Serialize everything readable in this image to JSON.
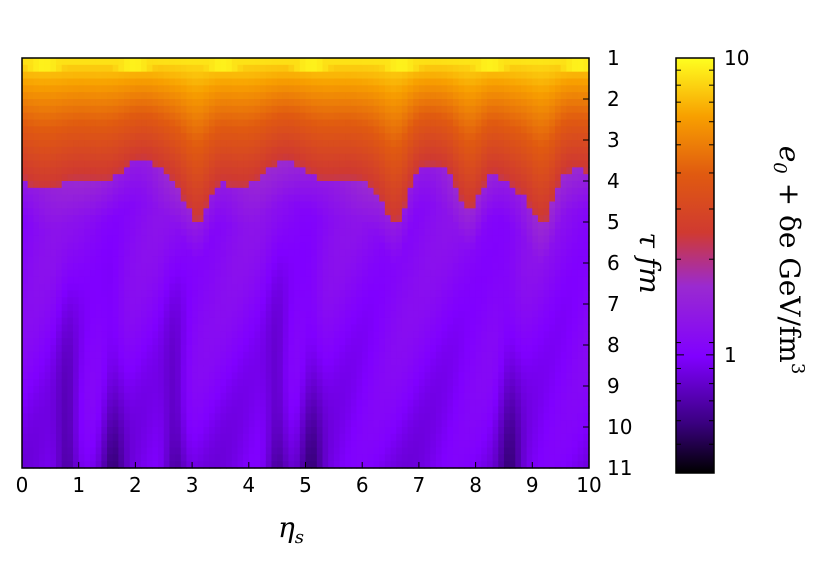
{
  "chart_data": {
    "type": "heatmap",
    "title": "",
    "x": {
      "label": "η",
      "label_sub": "s",
      "range": [
        0,
        10
      ],
      "ticks": [
        "0",
        "1",
        "2",
        "3",
        "4",
        "5",
        "6",
        "7",
        "8",
        "9",
        "10"
      ]
    },
    "y": {
      "label": "τ fm",
      "range": [
        1,
        11
      ],
      "inverted": true,
      "position": "right",
      "ticks": [
        "1",
        "2",
        "3",
        "4",
        "5",
        "6",
        "7",
        "8",
        "9",
        "10",
        "11"
      ]
    },
    "colorbar": {
      "label_prefix": "e",
      "label_sub": "0",
      "label_mid": " + δe GeV/fm",
      "label_sup": "3",
      "scale": "log",
      "range": [
        0.4,
        10
      ],
      "tick_labels": [
        "1",
        "10"
      ],
      "tick_values": [
        1,
        10
      ],
      "colormap": [
        "#000000",
        "#8000ff",
        "#d03030",
        "#ff8000",
        "#ffff00"
      ],
      "position": "right"
    },
    "grid": false,
    "description_values": {
      "upper_band_tau": [
        1,
        4
      ],
      "upper_band_level": "high (≈3–10)",
      "lower_region_level": "low (≈0.5–1.5)",
      "hot_spots_eta": [
        3.1,
        6.6,
        7.9,
        9.2
      ],
      "cool_spots_eta": [
        0.8,
        1.6,
        2.7,
        4.5,
        5.1,
        8.6
      ]
    }
  }
}
